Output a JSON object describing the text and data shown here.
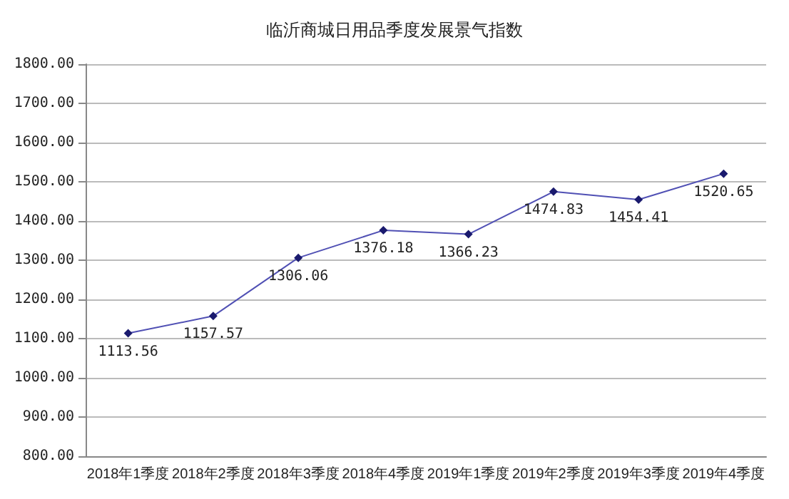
{
  "chart_data": {
    "type": "line",
    "title": "临沂商城日用品季度发展景气指数",
    "categories": [
      "2018年1季度",
      "2018年2季度",
      "2018年3季度",
      "2018年4季度",
      "2019年1季度",
      "2019年2季度",
      "2019年3季度",
      "2019年4季度"
    ],
    "series": [
      {
        "color": "#5050b4",
        "values": [
          1113.56,
          1157.57,
          1306.06,
          1376.18,
          1366.23,
          1474.83,
          1454.41,
          1520.65
        ]
      }
    ],
    "ylim": [
      800,
      1800
    ],
    "yticks": [
      {
        "value": 800,
        "label": "800.00"
      },
      {
        "value": 900,
        "label": "900.00"
      },
      {
        "value": 1000,
        "label": "1000.00"
      },
      {
        "value": 1100,
        "label": "1100.00"
      },
      {
        "value": 1200,
        "label": "1200.00"
      },
      {
        "value": 1300,
        "label": "1300.00"
      },
      {
        "value": 1400,
        "label": "1400.00"
      },
      {
        "value": 1500,
        "label": "1500.00"
      },
      {
        "value": 1600,
        "label": "1600.00"
      },
      {
        "value": 1700,
        "label": "1700.00"
      },
      {
        "value": 1800,
        "label": "1800.00"
      }
    ],
    "grid": "y",
    "marker": "diamond",
    "line_style": "solid",
    "data_labels": true
  }
}
